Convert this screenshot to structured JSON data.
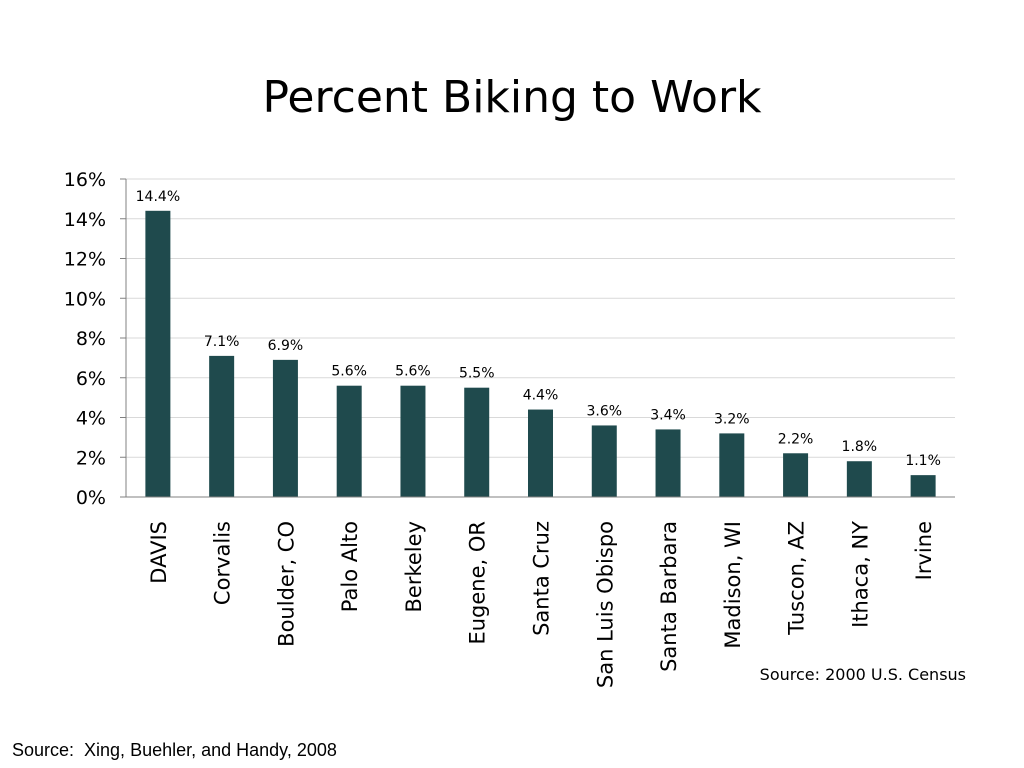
{
  "slide": {
    "title": "Percent Biking to Work",
    "footer_source": "Source:  Xing, Buehler, and Handy, 2008"
  },
  "chart_data": {
    "type": "bar",
    "title": "",
    "xlabel": "",
    "ylabel": "",
    "categories": [
      "DAVIS",
      "Corvalis",
      "Boulder, CO",
      "Palo Alto",
      "Berkeley",
      "Eugene, OR",
      "Santa Cruz",
      "San Luis Obispo",
      "Santa Barbara",
      "Madison, WI",
      "Tuscon, AZ",
      "Ithaca, NY",
      "Irvine"
    ],
    "values": [
      14.4,
      7.1,
      6.9,
      5.6,
      5.6,
      5.5,
      4.4,
      3.6,
      3.4,
      3.2,
      2.2,
      1.8,
      1.1
    ],
    "data_labels": [
      "14.4%",
      "7.1%",
      "6.9%",
      "5.6%",
      "5.6%",
      "5.5%",
      "4.4%",
      "3.6%",
      "3.4%",
      "3.2%",
      "2.2%",
      "1.8%",
      "1.1%"
    ],
    "ylim": [
      0,
      16
    ],
    "yticks": [
      0,
      2,
      4,
      6,
      8,
      10,
      12,
      14,
      16
    ],
    "ytick_labels": [
      "0%",
      "2%",
      "4%",
      "6%",
      "8%",
      "10%",
      "12%",
      "14%",
      "16%"
    ],
    "grid": true,
    "bar_color": "#1f4a4d",
    "annotation": "Source:  2000 U.S. Census"
  }
}
